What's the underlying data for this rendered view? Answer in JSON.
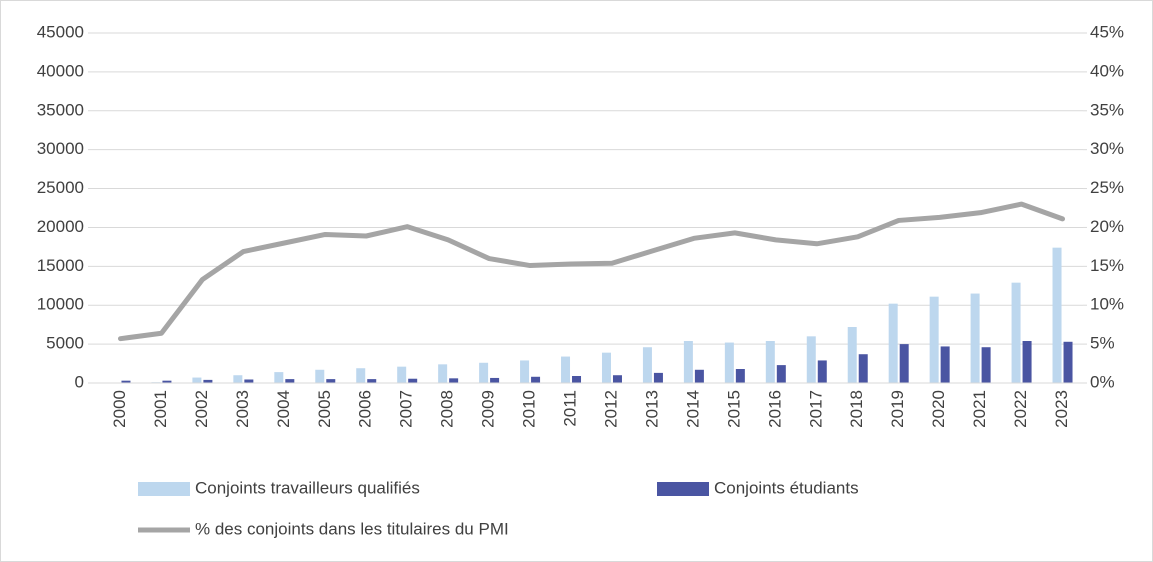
{
  "chart_data": {
    "type": "bar",
    "categories": [
      "2000",
      "2001",
      "2002",
      "2003",
      "2004",
      "2005",
      "2006",
      "2007",
      "2008",
      "2009",
      "2010",
      "2011",
      "2012",
      "2013",
      "2014",
      "2015",
      "2016",
      "2017",
      "2018",
      "2019",
      "2020",
      "2021",
      "2022",
      "2023"
    ],
    "series": [
      {
        "name": "Conjoints travailleurs qualifiés",
        "color": "#bdd7ee",
        "values": [
          50,
          100,
          700,
          1000,
          1400,
          1700,
          1900,
          2100,
          2400,
          2600,
          2900,
          3400,
          3900,
          4600,
          5400,
          5200,
          5400,
          6000,
          7200,
          10200,
          11100,
          11500,
          12900,
          17400
        ]
      },
      {
        "name": "Conjoints étudiants",
        "color": "#4a55a2",
        "values": [
          300,
          300,
          400,
          450,
          500,
          500,
          500,
          550,
          600,
          650,
          800,
          900,
          1000,
          1300,
          1700,
          1800,
          2300,
          2900,
          3700,
          5000,
          4700,
          4600,
          5400,
          5300
        ]
      },
      {
        "name": "% des conjoints dans les titulaires du PMI",
        "color": "#a5a5a5",
        "type": "line",
        "axis": "y2",
        "values": [
          5.7,
          6.4,
          13.3,
          16.9,
          18.0,
          19.1,
          18.9,
          20.1,
          18.4,
          16.0,
          15.1,
          15.3,
          15.4,
          17.0,
          18.6,
          19.3,
          18.4,
          17.9,
          18.8,
          20.9,
          21.3,
          21.9,
          23.0,
          21.1
        ]
      }
    ],
    "ylim": [
      0,
      45000
    ],
    "yticks": [
      0,
      5000,
      10000,
      15000,
      20000,
      25000,
      30000,
      35000,
      40000,
      45000
    ],
    "y2lim": [
      0,
      45
    ],
    "y2ticks": [
      {
        "value": 0,
        "label": "0%"
      },
      {
        "value": 5,
        "label": "5%"
      },
      {
        "value": 10,
        "label": "10%"
      },
      {
        "value": 15,
        "label": "15%"
      },
      {
        "value": 20,
        "label": "20%"
      },
      {
        "value": 25,
        "label": "25%"
      },
      {
        "value": 30,
        "label": "30%"
      },
      {
        "value": 35,
        "label": "35%"
      },
      {
        "value": 40,
        "label": "40%"
      },
      {
        "value": 45,
        "label": "45%"
      }
    ],
    "grid": true,
    "legend": "bottom"
  }
}
